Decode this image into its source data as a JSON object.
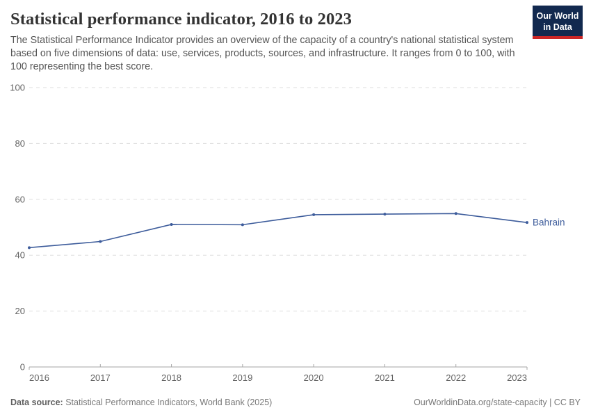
{
  "header": {
    "title": "Statistical performance indicator, 2016 to 2023",
    "subtitle": "The Statistical Performance Indicator provides an overview of the capacity of a country's national statistical system based on five dimensions of data: use, services, products, sources, and infrastructure. It ranges from 0 to 100, with 100 representing the best score.",
    "logo": {
      "line1": "Our World",
      "line2": "in Data"
    }
  },
  "chart_data": {
    "type": "line",
    "title": "Statistical performance indicator, 2016 to 2023",
    "x": [
      2016,
      2017,
      2018,
      2019,
      2020,
      2021,
      2022,
      2023
    ],
    "series": [
      {
        "name": "Bahrain",
        "values": [
          42.7,
          44.9,
          51.0,
          50.9,
          54.5,
          54.7,
          54.9,
          51.7
        ]
      }
    ],
    "ylim": [
      0,
      100
    ],
    "yticks": [
      0,
      20,
      40,
      60,
      80,
      100
    ],
    "xlabel": "",
    "ylabel": "",
    "grid": "dashed-horizontal",
    "legend": "end-of-line-label"
  },
  "footer": {
    "datasource_label": "Data source:",
    "datasource_value": " Statistical Performance Indicators, World Bank (2025)",
    "link": "OurWorldinData.org/state-capacity | CC BY"
  },
  "colors": {
    "line": "#3D5C9B",
    "grid": "#DDDDDD",
    "axis": "#A5A5A5",
    "tick_label": "#636363",
    "logo_bg": "#12294F",
    "logo_accent": "#CB2626"
  }
}
